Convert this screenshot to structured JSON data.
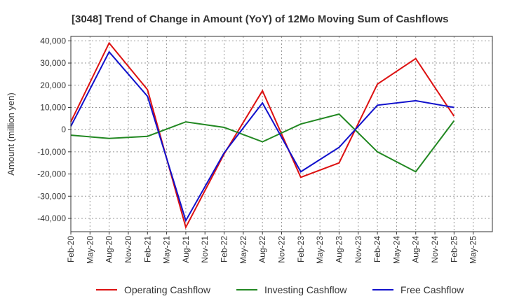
{
  "chart_data": {
    "type": "line",
    "title": "[3048]  Trend of Change in Amount (YoY) of 12Mo Moving Sum of Cashflows",
    "xlabel": "",
    "ylabel": "Amount (million yen)",
    "ylim": [
      -46000,
      42000
    ],
    "yticks": [
      40000,
      30000,
      20000,
      10000,
      0,
      -10000,
      -20000,
      -30000,
      -40000
    ],
    "ytick_labels": [
      "40,000",
      "30,000",
      "20,000",
      "10,000",
      "0",
      "-10,000",
      "-20,000",
      "-30,000",
      "-40,000"
    ],
    "categories": [
      "Feb-20",
      "May-20",
      "Aug-20",
      "Nov-20",
      "Feb-21",
      "May-21",
      "Aug-21",
      "Nov-21",
      "Feb-22",
      "May-22",
      "Aug-22",
      "Nov-22",
      "Feb-23",
      "May-23",
      "Aug-23",
      "Nov-23",
      "Feb-24",
      "May-24",
      "Aug-24",
      "Nov-24",
      "Feb-25",
      "May-25"
    ],
    "grid": true,
    "legend_position": "bottom",
    "series": [
      {
        "name": "Operating Cashflow",
        "color": "#dd1111",
        "values": [
          3500,
          null,
          39000,
          null,
          18000,
          null,
          -44000,
          null,
          -11000,
          null,
          17500,
          null,
          -21500,
          null,
          -15000,
          null,
          20500,
          null,
          32000,
          null,
          6000,
          null
        ]
      },
      {
        "name": "Investing Cashflow",
        "color": "#228822",
        "values": [
          -2500,
          null,
          -4000,
          null,
          -3000,
          null,
          3500,
          null,
          1000,
          null,
          -5500,
          null,
          2500,
          null,
          7000,
          null,
          -10000,
          null,
          -19000,
          null,
          4000,
          null
        ]
      },
      {
        "name": "Free Cashflow",
        "color": "#1111cc",
        "values": [
          1500,
          null,
          35000,
          null,
          15000,
          null,
          -41000,
          null,
          -10500,
          null,
          12000,
          null,
          -19000,
          null,
          -8000,
          null,
          11000,
          null,
          13000,
          null,
          10000,
          null
        ]
      }
    ]
  }
}
